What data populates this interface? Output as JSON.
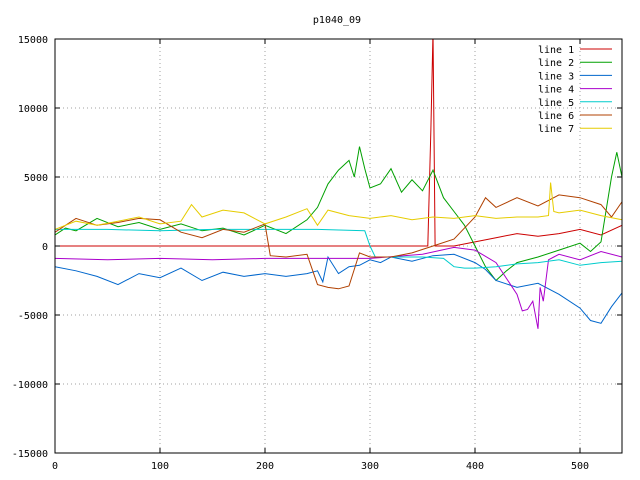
{
  "chart_data": {
    "type": "line",
    "title": "p1040_09",
    "xlabel": "",
    "ylabel": "",
    "xlim": [
      0,
      540
    ],
    "ylim": [
      -15000,
      15000
    ],
    "grid": true,
    "legend_position": "top-right",
    "x_ticks": [
      {
        "value": 0,
        "label": "0"
      },
      {
        "value": 100,
        "label": "100"
      },
      {
        "value": 200,
        "label": "200"
      },
      {
        "value": 300,
        "label": "300"
      },
      {
        "value": 400,
        "label": "400"
      },
      {
        "value": 500,
        "label": "500"
      }
    ],
    "y_ticks": [
      {
        "value": 15000,
        "label": "15000"
      },
      {
        "value": 10000,
        "label": "10000"
      },
      {
        "value": 5000,
        "label": "5000"
      },
      {
        "value": 0,
        "label": "0"
      },
      {
        "value": -5000,
        "label": "-5000"
      },
      {
        "value": -10000,
        "label": "-10000"
      },
      {
        "value": -15000,
        "label": "-15000"
      }
    ],
    "series": [
      {
        "name": "line 1",
        "color": "#cc0000",
        "x": [
          0,
          20,
          60,
          100,
          150,
          200,
          205,
          240,
          260,
          275,
          280,
          290,
          300,
          320,
          340,
          355,
          358,
          360,
          362,
          365,
          380,
          400,
          420,
          440,
          460,
          480,
          500,
          520,
          540
        ],
        "y": [
          0,
          0,
          0,
          0,
          0,
          0,
          0,
          0,
          0,
          0,
          0,
          0,
          0,
          0,
          0,
          0,
          8500,
          15500,
          0,
          0,
          0,
          300,
          600,
          900,
          700,
          900,
          1200,
          800,
          1500
        ]
      },
      {
        "name": "line 2",
        "color": "#00a000",
        "x": [
          0,
          10,
          20,
          40,
          60,
          80,
          100,
          120,
          140,
          160,
          180,
          200,
          220,
          240,
          250,
          260,
          270,
          280,
          285,
          290,
          295,
          300,
          310,
          320,
          330,
          340,
          350,
          360,
          370,
          380,
          390,
          400,
          410,
          420,
          430,
          440,
          460,
          480,
          500,
          510,
          520,
          530,
          535,
          540
        ],
        "y": [
          800,
          1300,
          1100,
          2000,
          1400,
          1700,
          1200,
          1600,
          1100,
          1300,
          800,
          1500,
          900,
          1900,
          2800,
          4500,
          5500,
          6200,
          5000,
          7200,
          5600,
          4200,
          4500,
          5600,
          3900,
          4800,
          4000,
          5500,
          3500,
          2500,
          1500,
          0,
          -1500,
          -2500,
          -1800,
          -1200,
          -800,
          -300,
          200,
          -400,
          300,
          5000,
          6800,
          5000
        ]
      },
      {
        "name": "line 3",
        "color": "#0066cc",
        "x": [
          0,
          20,
          40,
          60,
          80,
          100,
          120,
          140,
          160,
          180,
          200,
          220,
          240,
          250,
          255,
          260,
          270,
          280,
          290,
          300,
          310,
          320,
          340,
          360,
          380,
          400,
          410,
          420,
          440,
          460,
          480,
          500,
          510,
          520,
          530,
          540
        ],
        "y": [
          -1500,
          -1800,
          -2200,
          -2800,
          -2000,
          -2300,
          -1600,
          -2500,
          -1900,
          -2200,
          -2000,
          -2200,
          -2000,
          -1800,
          -2600,
          -800,
          -2000,
          -1500,
          -1400,
          -1000,
          -1200,
          -800,
          -1100,
          -700,
          -600,
          -1200,
          -1700,
          -2500,
          -3000,
          -2700,
          -3500,
          -4500,
          -5400,
          -5600,
          -4400,
          -3400
        ]
      },
      {
        "name": "line 4",
        "color": "#aa00cc",
        "x": [
          0,
          50,
          100,
          150,
          200,
          250,
          300,
          350,
          380,
          400,
          420,
          440,
          445,
          450,
          455,
          460,
          462,
          465,
          470,
          475,
          480,
          500,
          520,
          540
        ],
        "y": [
          -900,
          -1000,
          -900,
          -1000,
          -900,
          -900,
          -900,
          -600,
          -100,
          -300,
          -1200,
          -3500,
          -4700,
          -4600,
          -4000,
          -6000,
          -3000,
          -4000,
          -1000,
          -800,
          -600,
          -1000,
          -400,
          -800
        ]
      },
      {
        "name": "line 5",
        "color": "#00cccc",
        "x": [
          0,
          50,
          100,
          150,
          200,
          250,
          295,
          300,
          305,
          330,
          350,
          370,
          380,
          390,
          400,
          420,
          440,
          460,
          480,
          500,
          520,
          540
        ],
        "y": [
          1200,
          1200,
          1100,
          1200,
          1200,
          1200,
          1100,
          0,
          -800,
          -800,
          -800,
          -900,
          -1500,
          -1600,
          -1600,
          -1500,
          -1300,
          -1200,
          -1000,
          -1400,
          -1200,
          -1100
        ]
      },
      {
        "name": "line 6",
        "color": "#b04000",
        "x": [
          0,
          20,
          40,
          60,
          80,
          100,
          120,
          140,
          160,
          180,
          200,
          205,
          220,
          240,
          250,
          260,
          270,
          280,
          290,
          300,
          320,
          340,
          360,
          380,
          400,
          410,
          420,
          440,
          460,
          480,
          500,
          520,
          530,
          540
        ],
        "y": [
          1000,
          2000,
          1500,
          1700,
          2000,
          1900,
          1000,
          600,
          1200,
          1000,
          1600,
          -700,
          -800,
          -600,
          -2800,
          -3000,
          -3100,
          -2900,
          -500,
          -800,
          -800,
          -500,
          0,
          500,
          2100,
          3500,
          2800,
          3500,
          2900,
          3700,
          3500,
          3000,
          2100,
          3200
        ]
      },
      {
        "name": "line 7",
        "color": "#e6cc00",
        "x": [
          0,
          20,
          40,
          60,
          80,
          100,
          120,
          130,
          140,
          160,
          180,
          200,
          220,
          240,
          250,
          260,
          280,
          300,
          320,
          340,
          360,
          380,
          400,
          420,
          440,
          460,
          470,
          472,
          475,
          480,
          500,
          520,
          540
        ],
        "y": [
          1200,
          1800,
          1500,
          1800,
          2100,
          1600,
          1800,
          3000,
          2100,
          2600,
          2400,
          1600,
          2100,
          2700,
          1500,
          2600,
          2200,
          2000,
          2200,
          1900,
          2100,
          2000,
          2200,
          2000,
          2100,
          2100,
          2200,
          4600,
          2500,
          2400,
          2600,
          2200,
          1900
        ]
      }
    ]
  }
}
